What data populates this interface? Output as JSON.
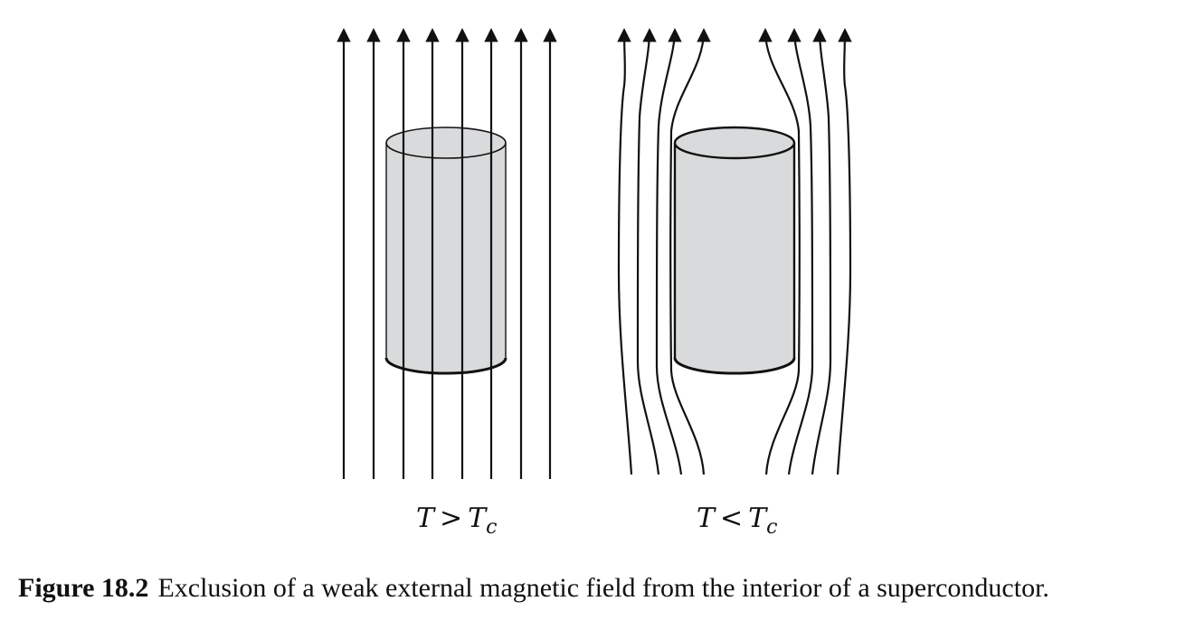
{
  "panels": [
    {
      "variable": "T",
      "relation": ">",
      "critical": "T",
      "subscript": "c",
      "fill_color": "#d9dadb",
      "field_state": "penetrates"
    },
    {
      "variable": "T",
      "relation": "<",
      "critical": "T",
      "subscript": "c",
      "fill_color": "#d9dadb",
      "field_state": "expelled"
    }
  ],
  "caption": {
    "figure_number": "Figure 18.2",
    "text": "Exclusion of a weak external magnetic field from the interior of a superconductor."
  },
  "colors": {
    "line": "#111111",
    "cylinder_fill": "#d9dadb"
  }
}
